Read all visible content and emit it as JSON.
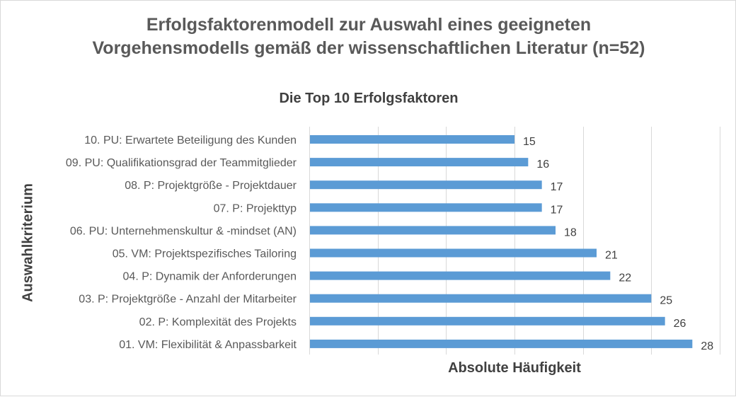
{
  "title_line1": "Erfolgsfaktorenmodell zur Auswahl eines geeigneten",
  "title_line2": "Vorgehensmodells gemäß der wissenschaftlichen Literatur (n=52)",
  "subtitle": "Die Top 10  Erfolgsfaktoren",
  "bar_color": "#5b9bd5",
  "chart_data": {
    "type": "bar",
    "orientation": "horizontal",
    "title": "Erfolgsfaktorenmodell zur Auswahl eines geeigneten Vorgehensmodells gemäß der wissenschaftlichen Literatur (n=52)",
    "subtitle": "Die Top 10  Erfolgsfaktoren",
    "xlabel": "Absolute Häufigkeit",
    "ylabel": "Auswahlkriterium",
    "xlim": [
      0,
      30
    ],
    "grid": true,
    "categories": [
      "10. PU: Erwartete Beteiligung des Kunden",
      "09. PU: Qualifikationsgrad der Teammitglieder",
      "08. P: Projektgröße - Projektdauer",
      "07. P: Projekttyp",
      "06. PU: Unternehmenskultur & -mindset (AN)",
      "05. VM: Projektspezifisches Tailoring",
      "04. P: Dynamik der Anforderungen",
      "03. P: Projektgröße - Anzahl der Mitarbeiter",
      "02. P: Komplexität des Projekts",
      "01. VM: Flexibilität & Anpassbarkeit"
    ],
    "values": [
      15,
      16,
      17,
      17,
      18,
      21,
      22,
      25,
      26,
      28
    ]
  }
}
